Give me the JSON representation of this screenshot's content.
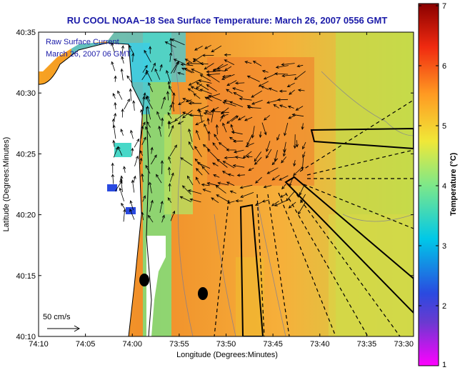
{
  "map": {
    "title": "RU COOL  NOAA−18  Sea Surface Temperature:  March 26, 2007 0556 GMT",
    "annotation_line1": "Raw Surface Current",
    "annotation_line2": "March 26, 2007 06 GMT",
    "x_axis_label": "Longitude (Degrees:Minutes)",
    "y_axis_label": "Latitude (Degrees:Minutes)",
    "x_ticks": [
      "74:10",
      "74:05",
      "74:00",
      "73:55",
      "73:50",
      "73:45",
      "73:40",
      "73:35",
      "73:30"
    ],
    "y_ticks": [
      "40:35",
      "40:30",
      "40:25",
      "40:20",
      "40:15",
      "40:10"
    ],
    "scale_label": "50 cm/s",
    "colorbar": {
      "label": "Temperature (°C)",
      "ticks": [
        "7",
        "6",
        "5",
        "4",
        "3",
        "2",
        "1"
      ],
      "range": [
        1,
        7
      ],
      "colormap": [
        "#ff00ff",
        "#3a3ad8",
        "#00c8e8",
        "#7fe888",
        "#f0e838",
        "#ff9a22",
        "#f02a10",
        "#8a0000"
      ]
    },
    "colors": {
      "title": "#1a1aa8",
      "land": "#ffffff",
      "coastline": "#000000",
      "arrows": "#000000",
      "contours": "#7a7a9a"
    },
    "lon_range": [
      "74:10",
      "73:30"
    ],
    "lat_range": [
      "40:10",
      "40:35"
    ]
  }
}
